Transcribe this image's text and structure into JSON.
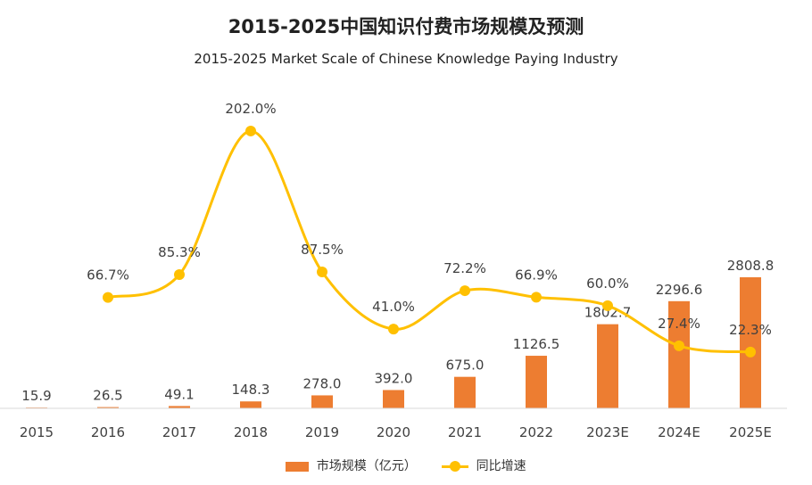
{
  "colors": {
    "bar": "#ED7D31",
    "line": "#FFC000",
    "axis": "#D9D9D9",
    "text": "#404040"
  },
  "chart_data": {
    "type": "bar",
    "title": "2015-2025中国知识付费市场规模及预测",
    "subtitle": "2015-2025 Market Scale of Chinese Knowledge Paying Industry",
    "categories": [
      "2015",
      "2016",
      "2017",
      "2018",
      "2019",
      "2020",
      "2021",
      "2022",
      "2023E",
      "2024E",
      "2025E"
    ],
    "series": [
      {
        "name": "市场规模（亿元）",
        "type": "bar",
        "values": [
          15.9,
          26.5,
          49.1,
          148.3,
          278.0,
          392.0,
          675.0,
          1126.5,
          1802.7,
          2296.6,
          2808.8
        ],
        "labels": [
          "15.9",
          "26.5",
          "49.1",
          "148.3",
          "278.0",
          "392.0",
          "675.0",
          "1126.5",
          "1802.7",
          "2296.6",
          "2808.8"
        ]
      },
      {
        "name": "同比增速",
        "type": "line",
        "values": [
          null,
          66.7,
          85.3,
          202.0,
          87.5,
          41.0,
          72.2,
          66.9,
          60.0,
          27.4,
          22.3
        ],
        "labels": [
          "",
          "66.7%",
          "85.3%",
          "202.0%",
          "87.5%",
          "41.0%",
          "72.2%",
          "66.9%",
          "60.0%",
          "27.4%",
          "22.3%"
        ]
      }
    ],
    "grid": false,
    "legend": "bottom"
  }
}
